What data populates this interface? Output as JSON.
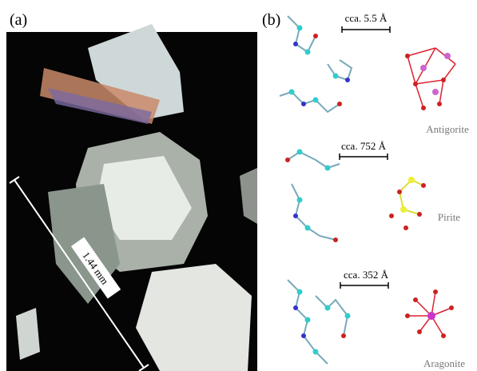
{
  "panels": [
    {
      "label": "(a)",
      "scale_label": "1.44 mm"
    },
    {
      "label": "(b)",
      "rows": [
        {
          "scale_label": "cca. 5.5 Å",
          "mineral": "Antigorite"
        },
        {
          "scale_label": "cca. 752 Å",
          "mineral": "Pirite"
        },
        {
          "scale_label": "cca. 352 Å",
          "mineral": "Aragonite"
        }
      ]
    }
  ]
}
